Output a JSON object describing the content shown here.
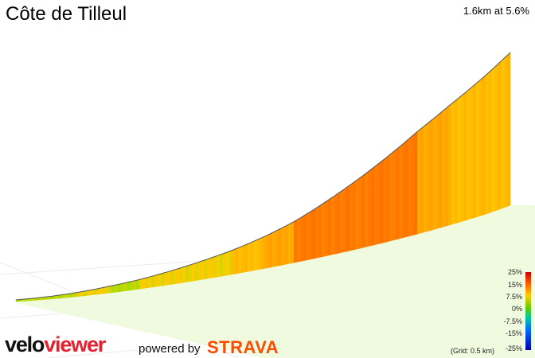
{
  "title": "Côte de Tilleul",
  "stats_text": "1.6km at 5.6%",
  "chart_data": {
    "type": "area",
    "title": "Côte de Tilleul",
    "distance_km": 1.6,
    "average_gradient_percent": 5.6,
    "x": [
      0.0,
      0.1,
      0.2,
      0.3,
      0.4,
      0.5,
      0.6,
      0.7,
      0.8,
      0.9,
      1.0,
      1.1,
      1.2,
      1.3,
      1.4,
      1.5,
      1.6
    ],
    "series": [
      {
        "values": [
          0,
          3,
          6,
          10,
          13,
          17,
          21,
          25,
          30,
          36,
          44,
          52,
          60,
          68,
          74,
          79,
          84
        ]
      }
    ],
    "xlabel": "",
    "ylabel": "",
    "grid_km": 0.5,
    "colorscale_ticks": [
      "25%",
      "15%",
      "7.5%",
      "0%",
      "-7.5%",
      "-15%",
      "-25%"
    ],
    "colorscale_colors": {
      "25%": "#cc0000",
      "15%": "#ff6600",
      "7.5%": "#ffcc00",
      "0%": "#66cc00",
      "-7.5%": "#00cc99",
      "-15%": "#0066ff",
      "-25%": "#0000aa"
    }
  },
  "grid_note": "(Grid: 0.5 km)",
  "branding": {
    "logo_part1": "velo",
    "logo_part2": "viewer",
    "powered_by": "powered by",
    "strava": "STRAVA",
    "accent_red": "#e3212f",
    "strava_orange": "#fc4c02"
  }
}
